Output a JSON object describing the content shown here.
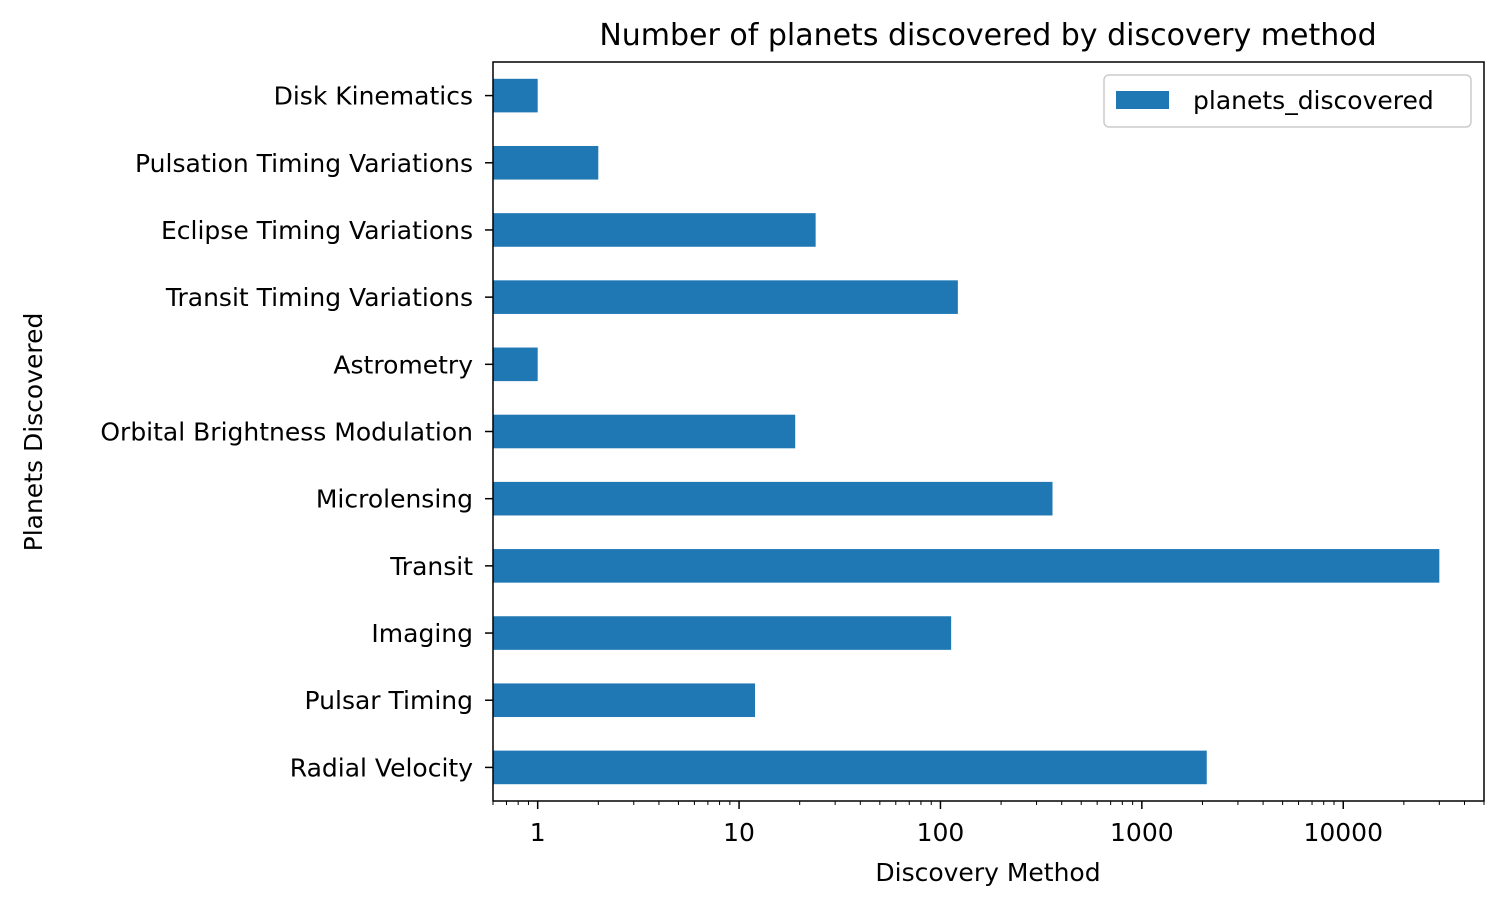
{
  "chart_data": {
    "type": "bar",
    "orientation": "horizontal",
    "title": "Number of planets discovered by discovery method",
    "xlabel": "Discovery Method",
    "ylabel": "Planets Discovered",
    "x_scale": "log",
    "xlim": [
      0.6,
      50000
    ],
    "x_ticks": [
      1,
      10,
      100,
      1000,
      10000
    ],
    "x_tick_labels": [
      "1",
      "10",
      "100",
      "1000",
      "10000"
    ],
    "grid": false,
    "legend_position": "top-right",
    "categories": [
      "Radial Velocity",
      "Pulsar Timing",
      "Imaging",
      "Transit",
      "Microlensing",
      "Orbital Brightness Modulation",
      "Astrometry",
      "Transit Timing Variations",
      "Eclipse Timing Variations",
      "Pulsation Timing Variations",
      "Disk Kinematics"
    ],
    "series": [
      {
        "name": "planets_discovered",
        "color": "#1f77b4",
        "values": [
          2100,
          12,
          113,
          30000,
          360,
          19,
          1,
          122,
          24,
          2,
          1
        ]
      }
    ]
  }
}
